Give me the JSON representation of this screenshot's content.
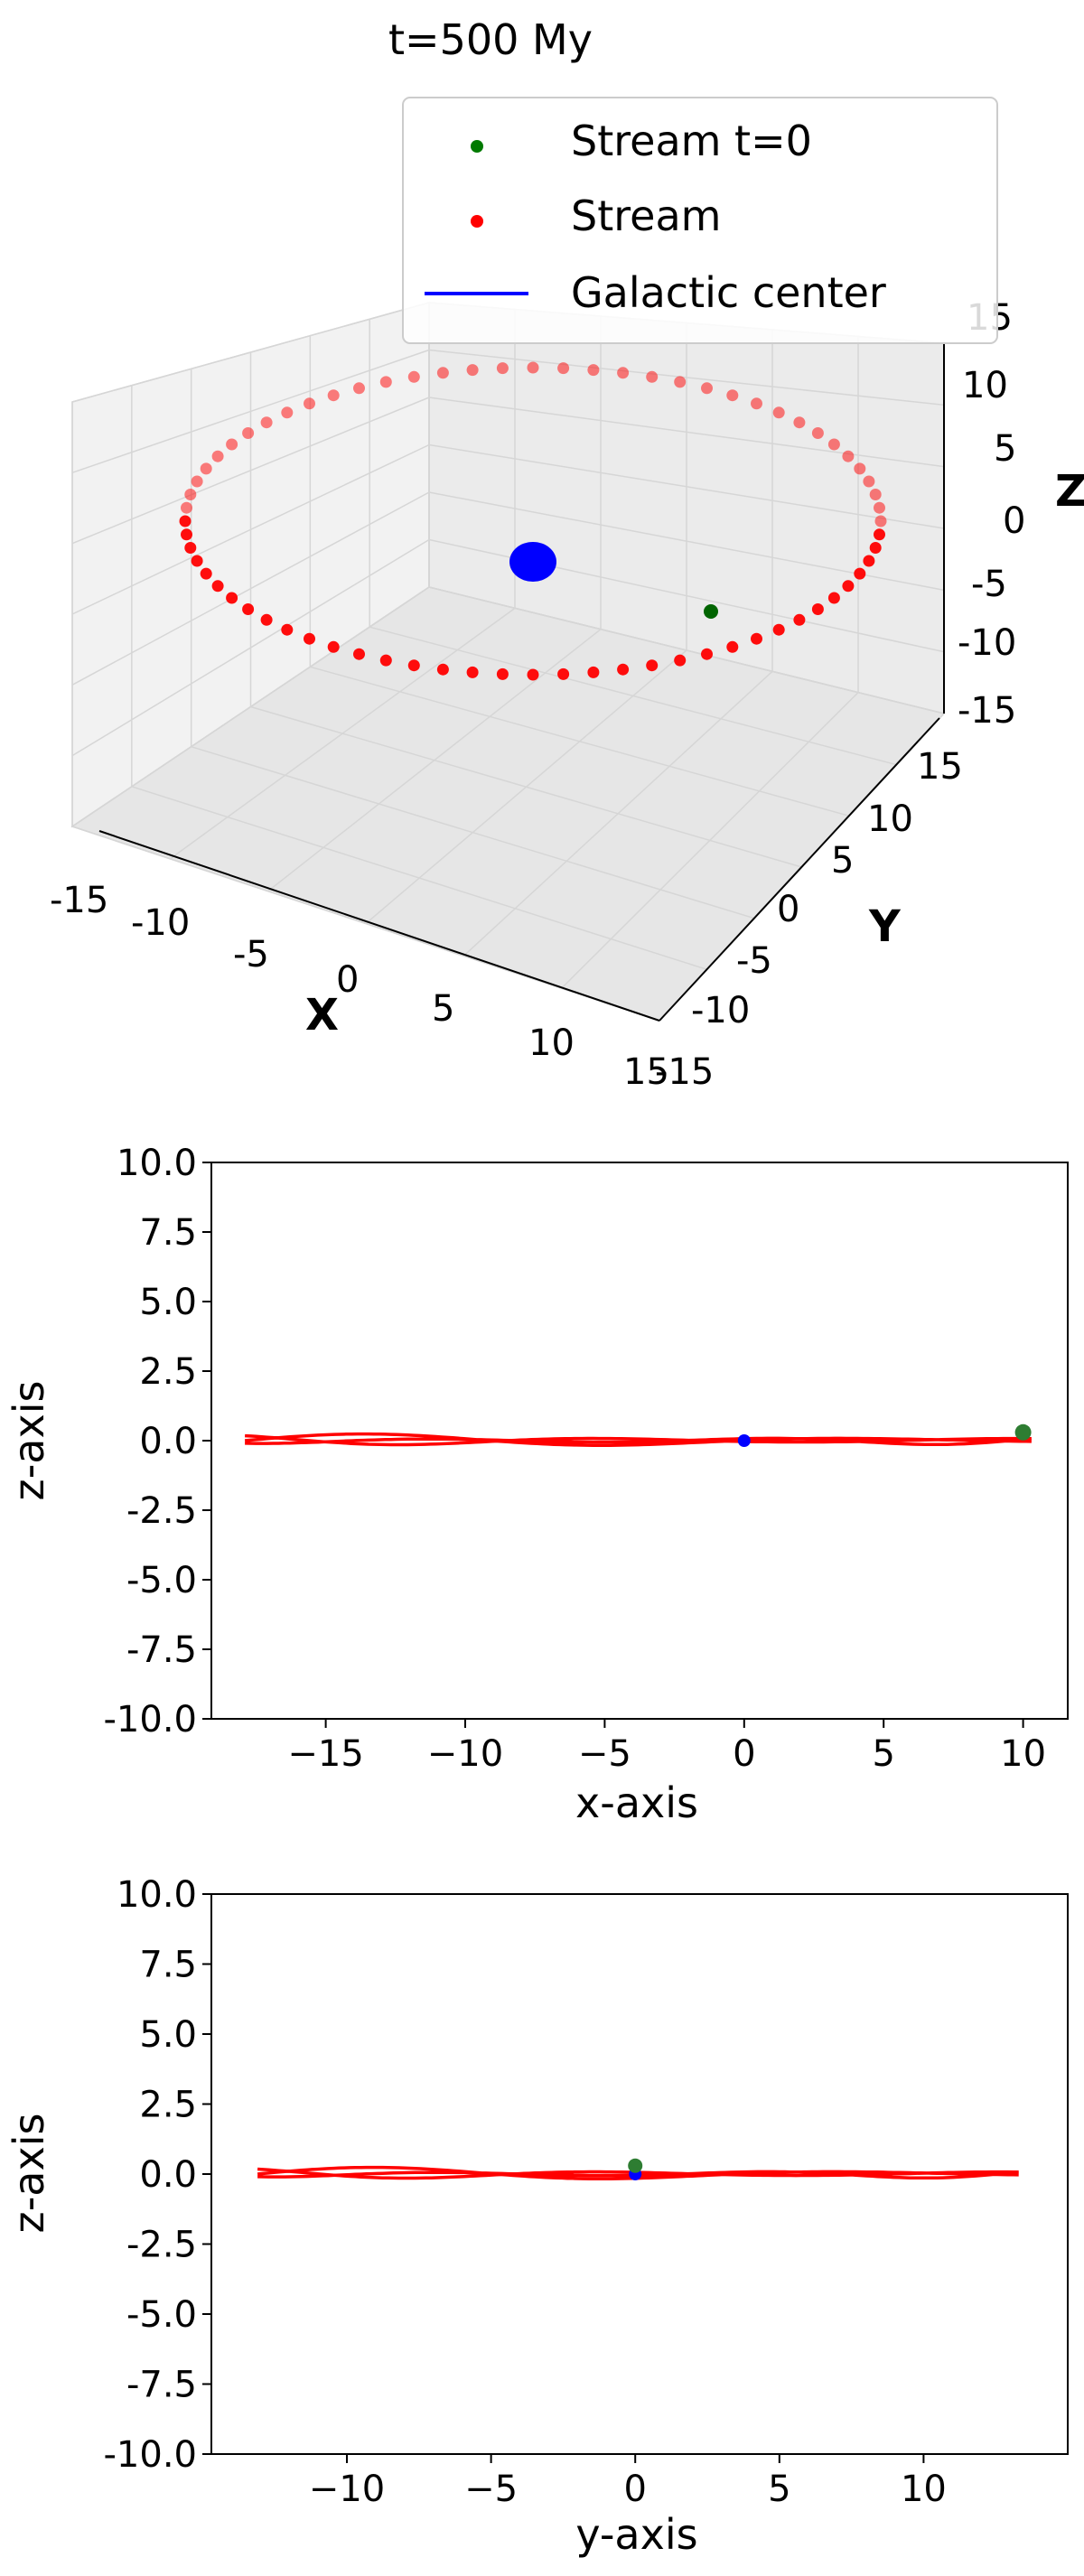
{
  "chart_data": [
    {
      "type": "scatter",
      "projection": "3d",
      "title": "t=500 My",
      "xlabel": "X",
      "ylabel": "Y",
      "zlabel": "Z",
      "xlim": [
        -15,
        15
      ],
      "ylim": [
        -15,
        15
      ],
      "zlim": [
        -15,
        15
      ],
      "x_ticks": [
        "-15",
        "-10",
        "-5",
        "0",
        "5",
        "10",
        "15"
      ],
      "y_ticks": [
        "-15",
        "-10",
        "-5",
        "0",
        "5",
        "10",
        "15"
      ],
      "z_ticks": [
        "-15",
        "-10",
        "-5",
        "0",
        "5",
        "10",
        "15"
      ],
      "grid": true,
      "legend_position": "top-right",
      "legend": [
        {
          "label": "Stream t=0",
          "color": "#007a00",
          "marker": "dot"
        },
        {
          "label": "Stream",
          "color": "#ff0000",
          "marker": "dot"
        },
        {
          "label": "Galactic center",
          "color": "#0000ff",
          "marker": "line"
        }
      ],
      "series": [
        {
          "name": "Stream",
          "color": "#ff0000",
          "shape": "ring",
          "radius": 13.2,
          "z": 0,
          "points": 72
        },
        {
          "name": "Stream t=0",
          "color": "#007a00",
          "x": 10,
          "y": 0,
          "z": 0.3
        },
        {
          "name": "Galactic center",
          "color": "#0000ff",
          "x": 0,
          "y": 0,
          "z": 0
        }
      ]
    },
    {
      "type": "line",
      "xlabel": "x-axis",
      "ylabel": "z-axis",
      "xlim": [
        -19.1,
        11.6
      ],
      "ylim": [
        -10,
        10
      ],
      "x_ticks": [
        -15,
        -10,
        -5,
        0,
        5,
        10
      ],
      "y_ticks": [
        "10.0",
        "7.5",
        "5.0",
        "2.5",
        "0.0",
        "-2.5",
        "-5.0",
        "-7.5",
        "-10.0"
      ],
      "series": [
        {
          "name": "Stream",
          "color": "#ff0000",
          "x_range": [
            -17.9,
            10.3
          ],
          "z_amplitude": 0.25
        },
        {
          "name": "Stream t=0",
          "color": "#007a00",
          "x": 10,
          "z": 0.3
        },
        {
          "name": "Galactic center",
          "color": "#0000ff",
          "x": 0,
          "z": 0
        }
      ]
    },
    {
      "type": "line",
      "xlabel": "y-axis",
      "ylabel": "z-axis",
      "xlim": [
        -14.7,
        15.0
      ],
      "ylim": [
        -10,
        10
      ],
      "x_ticks": [
        -10,
        -5,
        0,
        5,
        10
      ],
      "y_ticks": [
        "10.0",
        "7.5",
        "5.0",
        "2.5",
        "0.0",
        "-2.5",
        "-5.0",
        "-7.5",
        "-10.0"
      ],
      "series": [
        {
          "name": "Stream",
          "color": "#ff0000",
          "x_range": [
            -13.1,
            13.3
          ],
          "z_amplitude": 0.25
        },
        {
          "name": "Stream t=0",
          "color": "#007a00",
          "x": 0,
          "z": 0.3
        },
        {
          "name": "Galactic center",
          "color": "#0000ff",
          "x": 0,
          "z": 0
        }
      ]
    }
  ]
}
